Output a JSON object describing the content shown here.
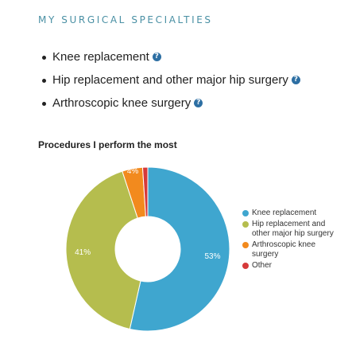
{
  "section": {
    "title": "MY SURGICAL SPECIALTIES"
  },
  "specialties": [
    {
      "label": "Knee replacement",
      "icon": "info-icon"
    },
    {
      "label": "Hip replacement and other major hip surgery",
      "icon": "info-icon"
    },
    {
      "label": "Arthroscopic knee surgery",
      "icon": "info-icon"
    }
  ],
  "chart_title": "Procedures I perform the most",
  "chart_data": {
    "type": "pie",
    "title": "Procedures I perform the most",
    "donut": true,
    "legend_position": "right",
    "slices": [
      {
        "label": "Knee replacement",
        "value": 53,
        "display": "53%",
        "color": "#3fa6cf"
      },
      {
        "label": "Hip replacement and other major hip surgery",
        "value": 41,
        "display": "41%",
        "color": "#b5bd4e"
      },
      {
        "label": "Arthroscopic knee surgery",
        "value": 4,
        "display": "4%",
        "color": "#f28a1e"
      },
      {
        "label": "Other",
        "value": 1,
        "display": "",
        "color": "#d63a3a"
      }
    ]
  },
  "legend": [
    {
      "label": "Knee replacement",
      "color": "#3fa6cf"
    },
    {
      "label": "Hip replacement and other major hip surgery",
      "color": "#b5bd4e"
    },
    {
      "label": "Arthroscopic knee surgery",
      "color": "#f28a1e"
    },
    {
      "label": "Other",
      "color": "#d63a3a"
    }
  ]
}
